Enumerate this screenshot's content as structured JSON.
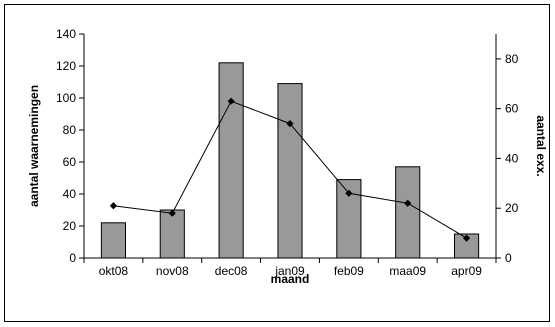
{
  "chart_data": {
    "type": "bar",
    "categories": [
      "okt08",
      "nov08",
      "dec08",
      "jan09",
      "feb09",
      "maa09",
      "apr09"
    ],
    "xlabel": "maand",
    "ylabel": "aantal waarnemingen",
    "y2label": "aantal exx.",
    "ylim": [
      0,
      140
    ],
    "yticks": [
      0,
      20,
      40,
      60,
      80,
      100,
      120,
      140
    ],
    "y2lim": [
      0,
      90
    ],
    "y2ticks": [
      0,
      20,
      40,
      60,
      80
    ],
    "grid": false,
    "series": [
      {
        "type": "bar",
        "axis": "left",
        "values": [
          22,
          30,
          122,
          109,
          49,
          57,
          15
        ],
        "color": "#999999"
      },
      {
        "type": "line",
        "axis": "right",
        "values": [
          21,
          18,
          63,
          54,
          26,
          22,
          8
        ],
        "color": "#000000",
        "marker": "diamond"
      }
    ]
  }
}
